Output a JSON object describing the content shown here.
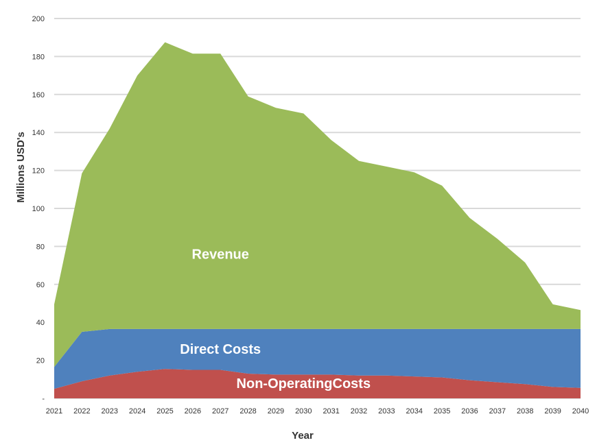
{
  "chart_data": {
    "type": "area",
    "stacked": true,
    "categories": [
      "2021",
      "2022",
      "2023",
      "2024",
      "2025",
      "2026",
      "2027",
      "2028",
      "2029",
      "2030",
      "2031",
      "2032",
      "2033",
      "2034",
      "2035",
      "2036",
      "2037",
      "2038",
      "2039",
      "2040"
    ],
    "series": [
      {
        "name": "Non-OperatingCosts",
        "color": "#c0504d",
        "values": [
          5,
          9,
          12,
          14,
          15.5,
          15,
          15,
          13,
          12.5,
          12.5,
          12.5,
          12,
          12,
          11.5,
          11,
          9.5,
          8.5,
          7.5,
          6,
          5.5
        ]
      },
      {
        "name": "Direct Costs",
        "color": "#4f81bd",
        "values": [
          16.5,
          35,
          36.5,
          36.5,
          36.5,
          36.5,
          36.5,
          36.5,
          36.5,
          36.5,
          36.5,
          36.5,
          36.5,
          36.5,
          36.5,
          36.5,
          36.5,
          36.5,
          36.5,
          36.5
        ]
      },
      {
        "name": "Revenue",
        "color": "#9bbb59",
        "values": [
          49.5,
          118.5,
          142,
          170,
          187.5,
          181.5,
          181.5,
          159,
          153,
          150,
          136,
          125,
          122,
          119,
          112,
          95,
          84,
          71.5,
          49.5,
          46.5
        ]
      }
    ],
    "xlabel": "Year",
    "ylabel": "Millions USD's",
    "ylim": [
      0,
      200
    ],
    "yticks": [
      {
        "value": 0,
        "label": "-"
      },
      {
        "value": 20,
        "label": "20"
      },
      {
        "value": 40,
        "label": "40"
      },
      {
        "value": 60,
        "label": "60"
      },
      {
        "value": 80,
        "label": "80"
      },
      {
        "value": 100,
        "label": "100"
      },
      {
        "value": 120,
        "label": "120"
      },
      {
        "value": 140,
        "label": "140"
      },
      {
        "value": 160,
        "label": "160"
      },
      {
        "value": 180,
        "label": "180"
      },
      {
        "value": 200,
        "label": "200"
      }
    ],
    "grid": true,
    "legend": "none",
    "annotations": [
      {
        "text": "Revenue",
        "x": "2027",
        "y": 76
      },
      {
        "text": "Direct Costs",
        "x": "2027",
        "y": 26
      },
      {
        "text": "Non-OperatingCosts",
        "x": "2030",
        "y": 8
      }
    ]
  }
}
